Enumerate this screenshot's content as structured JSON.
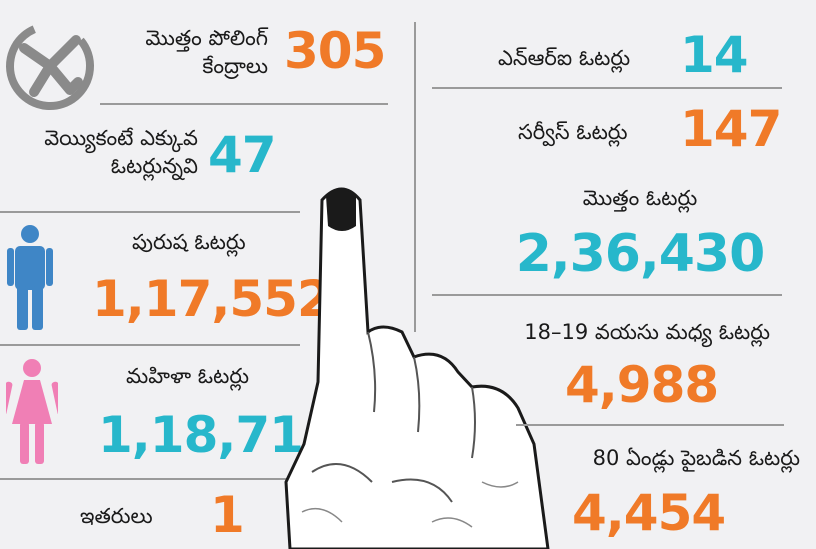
{
  "left": {
    "polling_stations": {
      "label_line1": "మొత్తం పోలింగ్",
      "label_line2": "కేంద్రాలు",
      "value": "305"
    },
    "over_thousand": {
      "label_line1": "వెయ్యికంటే ఎక్కువ",
      "label_line2": "ఓటర్లున్నవి",
      "value": "47"
    },
    "male": {
      "label": "పురుష ఓటర్లు",
      "value": "1,17,552"
    },
    "female": {
      "label": "మహిళా ఓటర్లు",
      "value": "1,18,716"
    },
    "others": {
      "label": "ఇతరులు",
      "value": "1"
    }
  },
  "right": {
    "nri": {
      "label": "ఎన్ఆర్ఐ ఓటర్లు",
      "value": "14"
    },
    "service": {
      "label": "సర్వీస్ ఓటర్లు",
      "value": "147"
    },
    "total": {
      "label": "మొత్తం ఓటర్లు",
      "value": "2,36,430"
    },
    "age_18_19": {
      "label": "18–19 వయసు మధ్య ఓటర్లు",
      "value": "4,988"
    },
    "age_80_plus": {
      "label": "80 ఏండ్లు పైబడిన ఓటర్లు",
      "value": "4,454"
    }
  },
  "colors": {
    "orange": "#f07a28",
    "teal": "#27b7cb",
    "male_icon": "#3f86c6",
    "female_icon": "#f07fb5",
    "logo": "#8a8a8a"
  },
  "icons": {
    "logo": "ballot-swastik-icon",
    "male": "male-person-icon",
    "female": "female-person-icon",
    "hand": "inked-finger-hand-icon"
  }
}
